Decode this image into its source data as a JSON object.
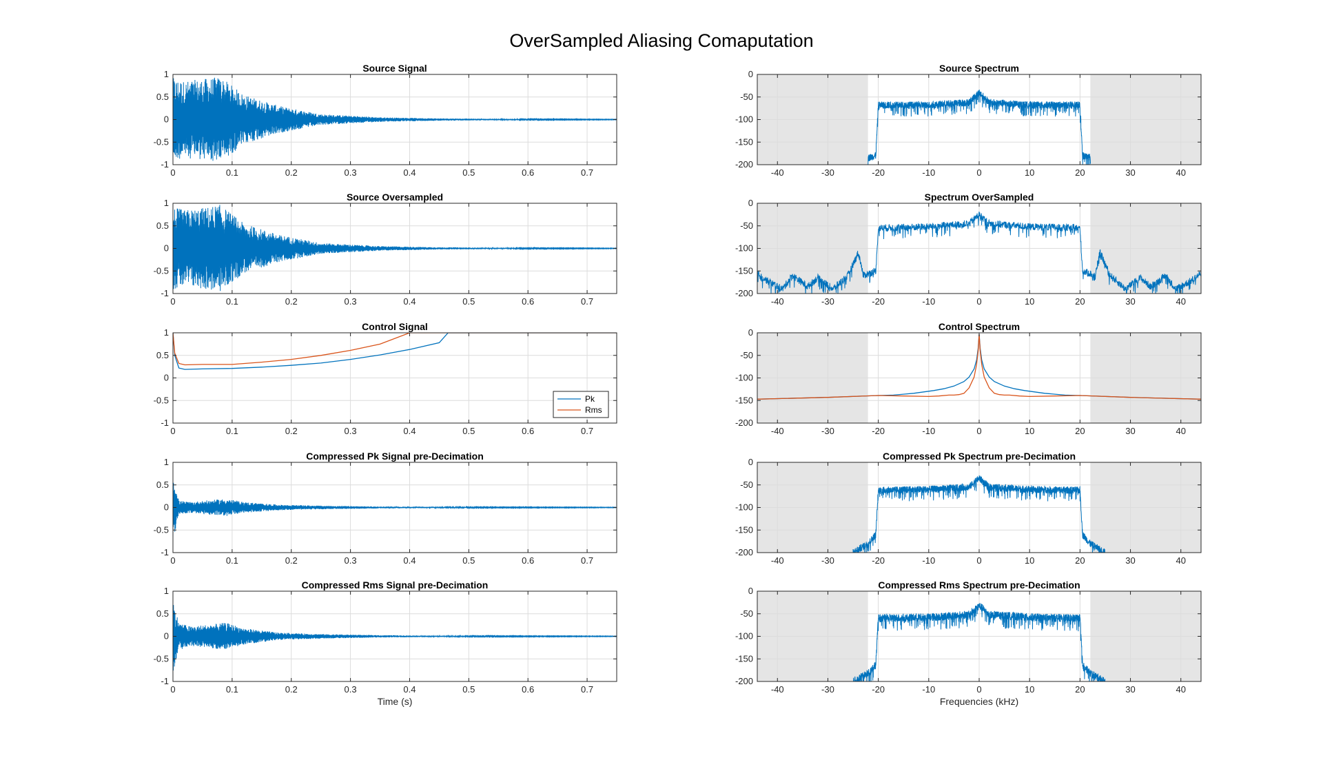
{
  "figure": {
    "title": "OverSampled Aliasing Comaputation",
    "colors": {
      "blue": "#0072BD",
      "orange": "#D95319",
      "shade": "#E5E5E5",
      "grid": "#DCDCDC",
      "axis": "#262626"
    }
  },
  "chart_data": [
    {
      "id": "source-signal",
      "type": "line",
      "col": 0,
      "row": 0,
      "title": "Source Signal",
      "xlabel": "",
      "ylabel": "",
      "xlim": [
        0,
        0.75
      ],
      "ylim": [
        -1,
        1
      ],
      "xticks": [
        0,
        0.1,
        0.2,
        0.3,
        0.4,
        0.5,
        0.6,
        0.7
      ],
      "yticks": [
        -1,
        -0.5,
        0,
        0.5,
        1
      ],
      "grid": true,
      "series": [
        {
          "kind": "signal",
          "color": "#0072BD",
          "envelope_time": [
            0,
            0.02,
            0.05,
            0.08,
            0.12,
            0.18,
            0.25,
            0.35,
            0.45,
            0.6,
            0.75
          ],
          "envelope_amp": [
            0.92,
            0.85,
            0.9,
            0.95,
            0.55,
            0.3,
            0.12,
            0.05,
            0.025,
            0.01,
            0.005
          ]
        }
      ]
    },
    {
      "id": "source-oversampled",
      "type": "line",
      "col": 0,
      "row": 1,
      "title": "Source Oversampled",
      "xlabel": "",
      "ylabel": "",
      "xlim": [
        0,
        0.75
      ],
      "ylim": [
        -1,
        1
      ],
      "xticks": [
        0,
        0.1,
        0.2,
        0.3,
        0.4,
        0.5,
        0.6,
        0.7
      ],
      "yticks": [
        -1,
        -0.5,
        0,
        0.5,
        1
      ],
      "grid": true,
      "series": [
        {
          "kind": "signal",
          "color": "#0072BD",
          "envelope_time": [
            0,
            0.02,
            0.05,
            0.08,
            0.12,
            0.18,
            0.25,
            0.35,
            0.45,
            0.6,
            0.75
          ],
          "envelope_amp": [
            0.92,
            0.85,
            0.9,
            0.97,
            0.55,
            0.3,
            0.12,
            0.05,
            0.025,
            0.01,
            0.005
          ]
        }
      ]
    },
    {
      "id": "control-signal",
      "type": "line",
      "col": 0,
      "row": 2,
      "title": "Control Signal",
      "xlabel": "",
      "ylabel": "",
      "xlim": [
        0,
        0.75
      ],
      "ylim": [
        -1,
        1
      ],
      "xticks": [
        0,
        0.1,
        0.2,
        0.3,
        0.4,
        0.5,
        0.6,
        0.7
      ],
      "yticks": [
        -1,
        -0.5,
        0,
        0.5,
        1
      ],
      "grid": true,
      "legend": {
        "placement": "bottom-right",
        "entries": [
          "Pk",
          "Rms"
        ]
      },
      "series": [
        {
          "kind": "curve",
          "name": "Pk",
          "color": "#0072BD",
          "x": [
            0,
            0.003,
            0.01,
            0.02,
            0.05,
            0.1,
            0.15,
            0.2,
            0.25,
            0.3,
            0.35,
            0.4,
            0.45,
            0.465,
            0.5,
            0.6,
            0.75
          ],
          "y": [
            1,
            0.5,
            0.22,
            0.19,
            0.2,
            0.21,
            0.24,
            0.28,
            0.33,
            0.41,
            0.51,
            0.63,
            0.78,
            1,
            1,
            1,
            1
          ]
        },
        {
          "kind": "curve",
          "name": "Rms",
          "color": "#D95319",
          "x": [
            0,
            0.003,
            0.01,
            0.02,
            0.05,
            0.1,
            0.15,
            0.2,
            0.25,
            0.3,
            0.35,
            0.4,
            0.4,
            0.5,
            0.6,
            0.75
          ],
          "y": [
            1,
            0.55,
            0.32,
            0.29,
            0.3,
            0.3,
            0.35,
            0.41,
            0.5,
            0.61,
            0.75,
            1,
            1,
            1,
            1,
            1
          ]
        }
      ]
    },
    {
      "id": "compressed-pk-signal",
      "type": "line",
      "col": 0,
      "row": 3,
      "title": "Compressed Pk Signal pre-Decimation",
      "xlabel": "",
      "ylabel": "",
      "xlim": [
        0,
        0.75
      ],
      "ylim": [
        -1,
        1
      ],
      "xticks": [
        0,
        0.1,
        0.2,
        0.3,
        0.4,
        0.5,
        0.6,
        0.7
      ],
      "yticks": [
        -1,
        -0.5,
        0,
        0.5,
        1
      ],
      "grid": true,
      "series": [
        {
          "kind": "signal",
          "color": "#0072BD",
          "envelope_time": [
            0,
            0.004,
            0.01,
            0.03,
            0.06,
            0.09,
            0.12,
            0.18,
            0.25,
            0.35,
            0.5,
            0.75
          ],
          "envelope_amp": [
            0.85,
            0.5,
            0.15,
            0.12,
            0.16,
            0.19,
            0.12,
            0.06,
            0.04,
            0.02,
            0.01,
            0.005
          ]
        }
      ]
    },
    {
      "id": "compressed-rms-signal",
      "type": "line",
      "col": 0,
      "row": 4,
      "title": "Compressed Rms Signal pre-Decimation",
      "xlabel": "Time (s)",
      "ylabel": "",
      "xlim": [
        0,
        0.75
      ],
      "ylim": [
        -1,
        1
      ],
      "xticks": [
        0,
        0.1,
        0.2,
        0.3,
        0.4,
        0.5,
        0.6,
        0.7
      ],
      "yticks": [
        -1,
        -0.5,
        0,
        0.5,
        1
      ],
      "grid": true,
      "series": [
        {
          "kind": "signal",
          "color": "#0072BD",
          "envelope_time": [
            0,
            0.004,
            0.01,
            0.03,
            0.06,
            0.09,
            0.12,
            0.18,
            0.25,
            0.35,
            0.5,
            0.75
          ],
          "envelope_amp": [
            0.85,
            0.6,
            0.3,
            0.22,
            0.26,
            0.3,
            0.18,
            0.08,
            0.05,
            0.025,
            0.01,
            0.005
          ]
        }
      ]
    },
    {
      "id": "source-spectrum",
      "type": "line",
      "col": 1,
      "row": 0,
      "title": "Source Spectrum",
      "xlabel": "",
      "ylabel": "",
      "xlim": [
        -44,
        44
      ],
      "ylim": [
        -200,
        0
      ],
      "xticks": [
        -40,
        -30,
        -20,
        -10,
        0,
        10,
        20,
        30,
        40
      ],
      "yticks": [
        -200,
        -150,
        -100,
        -50,
        0
      ],
      "grid": true,
      "shaded_regions": [
        [
          -44,
          -22.05
        ],
        [
          22.05,
          44
        ]
      ],
      "series": [
        {
          "kind": "spectrum",
          "color": "#0072BD",
          "x": [
            -22.05,
            -22,
            -20.5,
            -20,
            -10,
            -2,
            0,
            2,
            10,
            20,
            20.5,
            22,
            22.05
          ],
          "y": [
            -200,
            -185,
            -180,
            -68,
            -68,
            -62,
            -40,
            -62,
            -68,
            -68,
            -180,
            -185,
            -200
          ],
          "noise": 8
        }
      ]
    },
    {
      "id": "spectrum-oversampled",
      "type": "line",
      "col": 1,
      "row": 1,
      "title": "Spectrum OverSampled",
      "xlabel": "",
      "ylabel": "",
      "xlim": [
        -44,
        44
      ],
      "ylim": [
        -200,
        0
      ],
      "xticks": [
        -40,
        -30,
        -20,
        -10,
        0,
        10,
        20,
        30,
        40
      ],
      "yticks": [
        -200,
        -150,
        -100,
        -50,
        0
      ],
      "grid": true,
      "shaded_regions": [
        [
          -44,
          -22.05
        ],
        [
          22.05,
          44
        ]
      ],
      "series": [
        {
          "kind": "spectrum",
          "color": "#0072BD",
          "x": [
            -44,
            -42,
            -39,
            -37,
            -34,
            -32,
            -29,
            -26,
            -24,
            -23.5,
            -23,
            -20.5,
            -20,
            -10,
            -2,
            0,
            2,
            10,
            20,
            20.5,
            23,
            23.5,
            24,
            26,
            29,
            32,
            34,
            37,
            39,
            42,
            44
          ],
          "y": [
            -155,
            -172,
            -190,
            -160,
            -185,
            -165,
            -190,
            -160,
            -110,
            -130,
            -160,
            -150,
            -55,
            -52,
            -45,
            -25,
            -45,
            -52,
            -55,
            -150,
            -160,
            -130,
            -110,
            -160,
            -190,
            -165,
            -185,
            -160,
            -190,
            -172,
            -155
          ],
          "noise": 8
        }
      ]
    },
    {
      "id": "control-spectrum",
      "type": "line",
      "col": 1,
      "row": 2,
      "title": "Control Spectrum",
      "xlabel": "",
      "ylabel": "",
      "xlim": [
        -44,
        44
      ],
      "ylim": [
        -200,
        0
      ],
      "xticks": [
        -40,
        -30,
        -20,
        -10,
        0,
        10,
        20,
        30,
        40
      ],
      "yticks": [
        -200,
        -150,
        -100,
        -50,
        0
      ],
      "grid": true,
      "shaded_regions": [
        [
          -44,
          -22.05
        ],
        [
          22.05,
          44
        ]
      ],
      "series": [
        {
          "kind": "curve",
          "name": "Pk",
          "color": "#0072BD",
          "x": [
            -44,
            -30,
            -20,
            -17,
            -15,
            -13,
            -11,
            -9,
            -7,
            -5,
            -3,
            -2,
            -1,
            -0.5,
            -0.2,
            0,
            0.2,
            0.5,
            1,
            2,
            3,
            5,
            7,
            9,
            11,
            13,
            15,
            17,
            20,
            30,
            44
          ],
          "y": [
            -147,
            -143,
            -139,
            -138,
            -136,
            -134,
            -131,
            -128,
            -124,
            -118,
            -108,
            -98,
            -80,
            -60,
            -35,
            -3,
            -35,
            -60,
            -80,
            -98,
            -108,
            -118,
            -124,
            -128,
            -131,
            -134,
            -136,
            -138,
            -139,
            -143,
            -147
          ]
        },
        {
          "kind": "curve",
          "name": "Rms",
          "color": "#D95319",
          "x": [
            -44,
            -30,
            -20,
            -15,
            -10,
            -8,
            -6,
            -5,
            -4,
            -3,
            -2,
            -1,
            -0.5,
            -0.2,
            0,
            0.2,
            0.5,
            1,
            2,
            3,
            4,
            5,
            6,
            8,
            10,
            15,
            20,
            30,
            44
          ],
          "y": [
            -147,
            -143,
            -139,
            -140,
            -141,
            -140,
            -138,
            -138,
            -137,
            -134,
            -122,
            -98,
            -70,
            -40,
            -3,
            -40,
            -70,
            -98,
            -122,
            -134,
            -137,
            -138,
            -138,
            -140,
            -141,
            -140,
            -139,
            -143,
            -147
          ]
        }
      ]
    },
    {
      "id": "compressed-pk-spectrum",
      "type": "line",
      "col": 1,
      "row": 3,
      "title": "Compressed Pk Spectrum pre-Decimation",
      "xlabel": "",
      "ylabel": "",
      "xlim": [
        -44,
        44
      ],
      "ylim": [
        -200,
        0
      ],
      "xticks": [
        -40,
        -30,
        -20,
        -10,
        0,
        10,
        20,
        30,
        40
      ],
      "yticks": [
        -200,
        -150,
        -100,
        -50,
        0
      ],
      "grid": true,
      "shaded_regions": [
        [
          -44,
          -22.05
        ],
        [
          22.05,
          44
        ]
      ],
      "series": [
        {
          "kind": "spectrum",
          "color": "#0072BD",
          "x": [
            -25,
            -22,
            -20.5,
            -20,
            -10,
            -2,
            0,
            2,
            10,
            20,
            20.5,
            22,
            25
          ],
          "y": [
            -200,
            -180,
            -160,
            -62,
            -60,
            -55,
            -35,
            -55,
            -60,
            -62,
            -160,
            -180,
            -200
          ],
          "noise": 8
        }
      ]
    },
    {
      "id": "compressed-rms-spectrum",
      "type": "line",
      "col": 1,
      "row": 4,
      "title": "Compressed Rms Spectrum pre-Decimation",
      "xlabel": "Frequencies (kHz)",
      "ylabel": "",
      "xlim": [
        -44,
        44
      ],
      "ylim": [
        -200,
        0
      ],
      "xticks": [
        -40,
        -30,
        -20,
        -10,
        0,
        10,
        20,
        30,
        40
      ],
      "yticks": [
        -200,
        -150,
        -100,
        -50,
        0
      ],
      "grid": true,
      "shaded_regions": [
        [
          -44,
          -22.05
        ],
        [
          22.05,
          44
        ]
      ],
      "series": [
        {
          "kind": "spectrum",
          "color": "#0072BD",
          "x": [
            -25,
            -22,
            -20.5,
            -20,
            -10,
            -2,
            0,
            2,
            10,
            20,
            20.5,
            22,
            25
          ],
          "y": [
            -200,
            -182,
            -162,
            -60,
            -58,
            -52,
            -32,
            -52,
            -58,
            -60,
            -162,
            -182,
            -200
          ],
          "noise": 9
        }
      ]
    }
  ]
}
